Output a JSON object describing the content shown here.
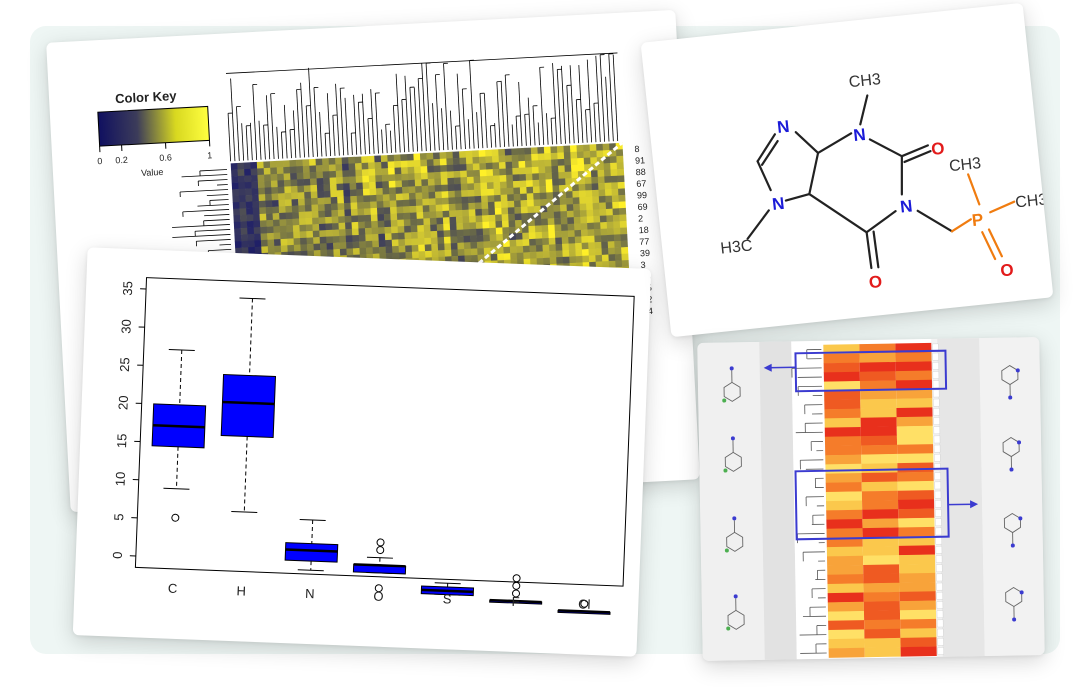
{
  "heatmap": {
    "color_key_title": "Color Key",
    "color_key_ticks": [
      "0",
      "0.2",
      "0.6",
      "1"
    ],
    "color_key_label": "Value",
    "row_labels": [
      "8",
      "91",
      "88",
      "67",
      "99",
      "69",
      "2",
      "18",
      "77",
      "39",
      "3",
      "83",
      "25",
      "22",
      "74"
    ],
    "colors": {
      "low": "#1a1a6e",
      "mid": "#7d7d40",
      "high": "#ffff30"
    }
  },
  "chart_data": {
    "type": "box",
    "categories": [
      "C",
      "H",
      "N",
      "O",
      "S",
      "F",
      "Cl"
    ],
    "yticks": [
      0,
      5,
      10,
      15,
      20,
      25,
      30,
      35
    ],
    "ylim": [
      -1.5,
      36.5
    ],
    "series": [
      {
        "category": "C",
        "whisker_low": 9,
        "q1": 14.5,
        "median": 17.2,
        "q3": 20,
        "whisker_high": 27.2,
        "outliers": [
          5.2
        ]
      },
      {
        "category": "H",
        "whisker_low": 6.3,
        "q1": 16.2,
        "median": 20.6,
        "q3": 24.2,
        "whisker_high": 34.3,
        "outliers": []
      },
      {
        "category": "N",
        "whisker_low": -1,
        "q1": 0.2,
        "median": 1.6,
        "q3": 2.5,
        "whisker_high": 5.6,
        "outliers": []
      },
      {
        "category": "O",
        "whisker_low": -1,
        "q1": -1,
        "median": 0,
        "q3": 0,
        "whisker_high": 1,
        "outliers": [
          2,
          3,
          -3
        ]
      },
      {
        "category": "S",
        "whisker_low": -3.5,
        "q1": -3.5,
        "median": -3,
        "q3": -2.5,
        "whisker_high": -2,
        "outliers": []
      },
      {
        "category": "F",
        "whisker_low": -4,
        "q1": -4,
        "median": -4,
        "q3": -4,
        "whisker_high": -4,
        "outliers": [
          -1,
          -2,
          -3
        ]
      },
      {
        "category": "Cl",
        "whisker_low": -5,
        "q1": -5,
        "median": -5,
        "q3": -5,
        "whisker_high": -5,
        "outliers": [
          -4
        ]
      }
    ],
    "colors": {
      "box": "#0000ff"
    }
  },
  "molecule": {
    "labels": {
      "ch3_top": "CH3",
      "n_top": "N",
      "n_imid": "N",
      "n_methyl": "N",
      "o_right": "O",
      "n_lower": "N",
      "ch3_p": "CH3",
      "ch3_right": "CH3",
      "p": "P",
      "h3c": "H3C",
      "o_bottom": "O",
      "o_p": "O"
    },
    "colors": {
      "N": "#1b1bd8",
      "O": "#e21b1b",
      "P": "#f07c10"
    }
  },
  "cluster": {
    "colors": {
      "low": "#ffe066",
      "high": "#e8301c",
      "frame": "#3b3bd0"
    }
  }
}
